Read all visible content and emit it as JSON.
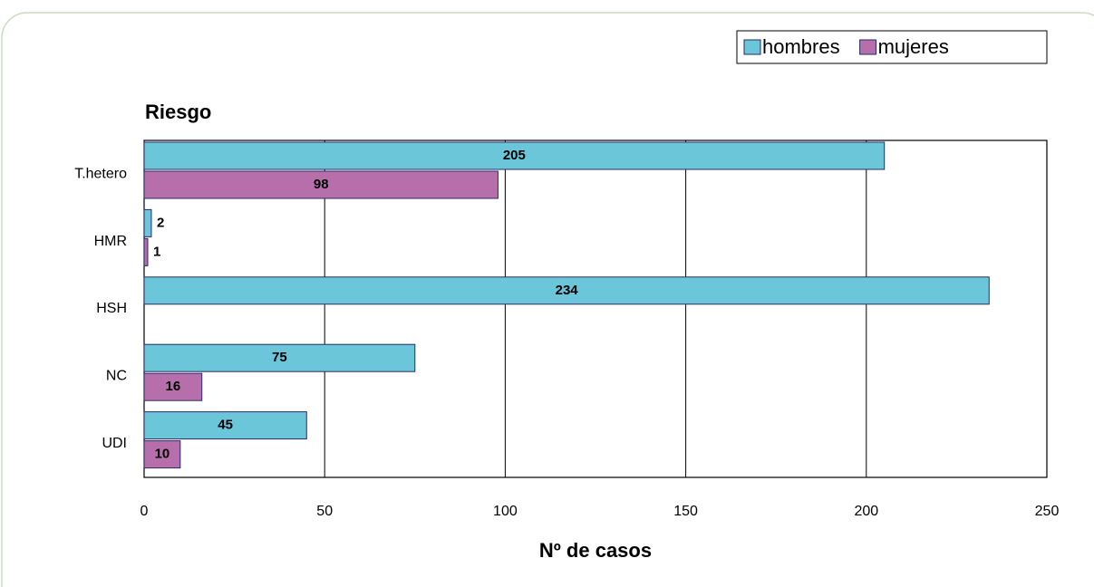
{
  "chart_data": {
    "type": "hbar",
    "title": "Riesgo",
    "x_label": "Nº de casos",
    "categories": [
      "T.hetero",
      "HMR",
      "HSH",
      "NC",
      "UDI"
    ],
    "series": [
      {
        "name": "hombres",
        "color": "#6cc6da",
        "values": [
          205,
          2,
          234,
          75,
          45
        ]
      },
      {
        "name": "mujeres",
        "color": "#b66faa",
        "values": [
          98,
          1,
          null,
          16,
          10
        ]
      }
    ],
    "xlim": [
      0,
      250
    ],
    "xticks": [
      0,
      50,
      100,
      150,
      200,
      250
    ],
    "grid": true,
    "legend": "top-right"
  }
}
